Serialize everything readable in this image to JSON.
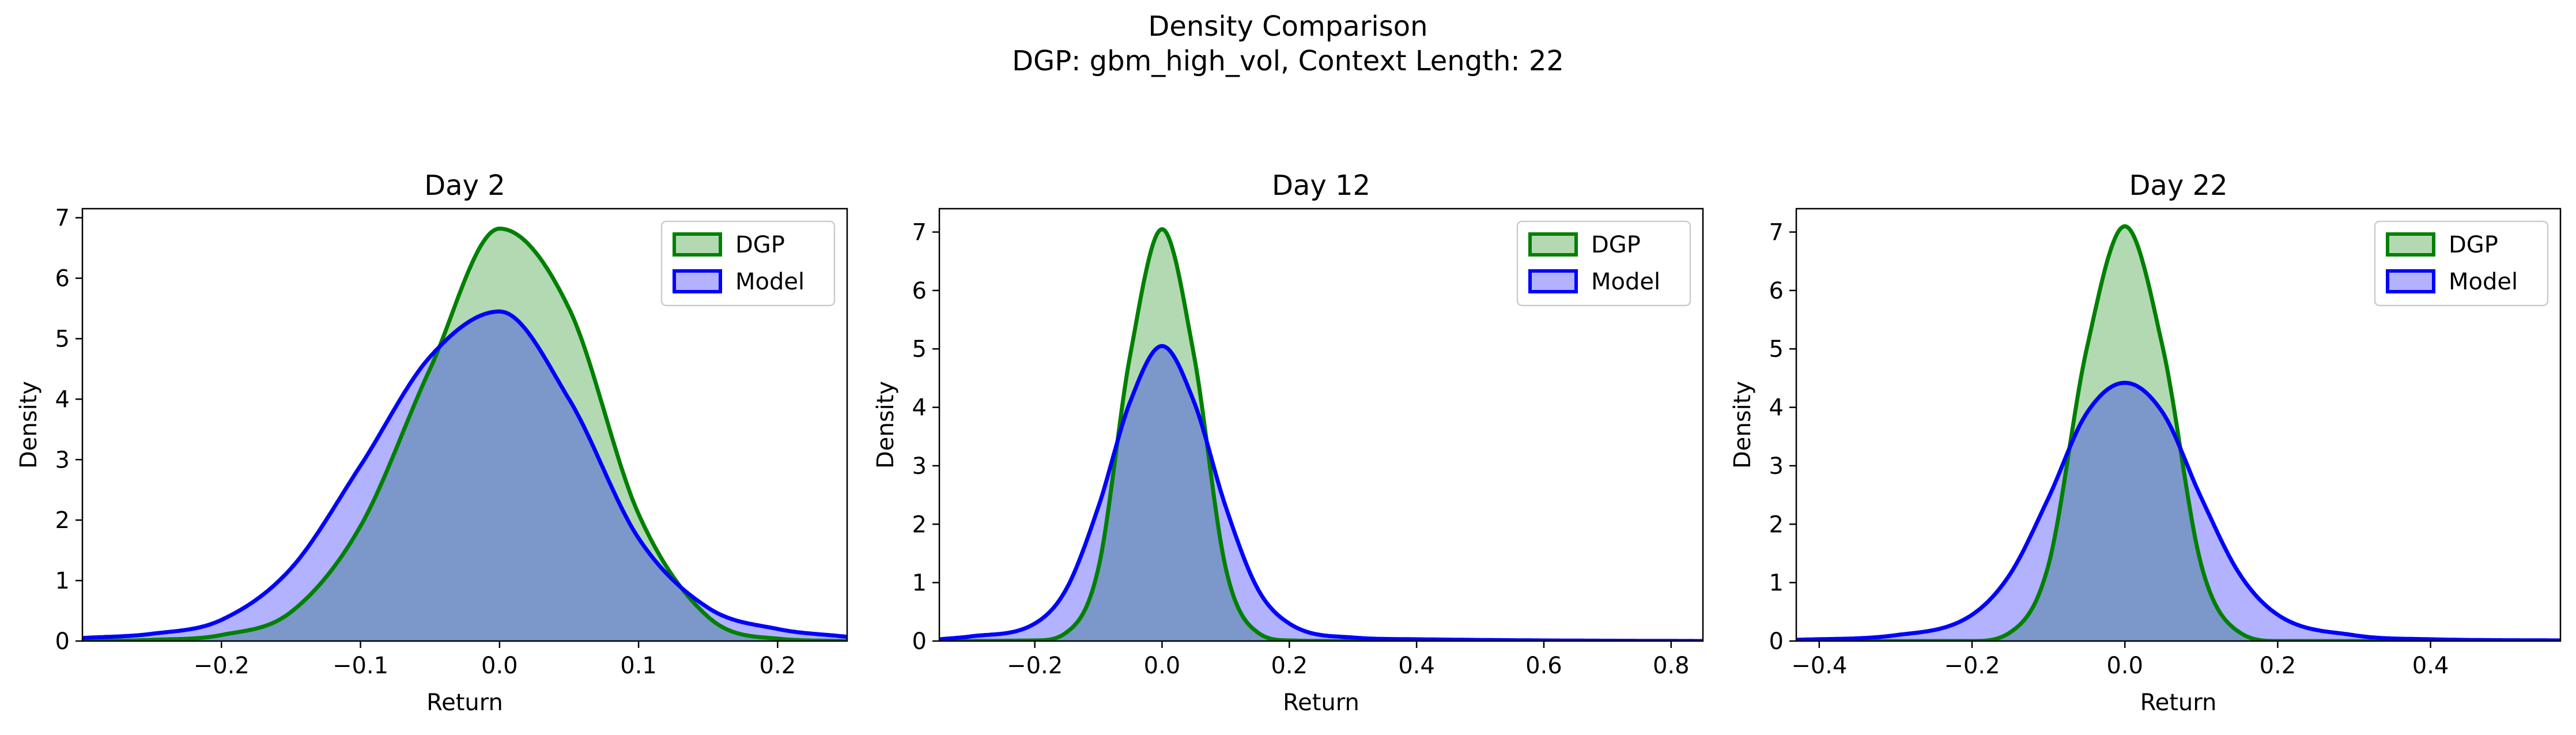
{
  "figure": {
    "title_line1": "Density Comparison",
    "title_line2": "DGP: gbm_high_vol, Context Length: 22"
  },
  "colors": {
    "dgp_line": "#008000",
    "dgp_fill": "#008000",
    "model_line": "#0000ff",
    "model_fill": "#0000ff"
  },
  "chart_data": [
    {
      "type": "area",
      "title": "Day 2",
      "xlabel": "Return",
      "ylabel": "Density",
      "xlim": [
        -0.3,
        0.25
      ],
      "ylim": [
        0,
        7.15
      ],
      "xticks": [
        -0.2,
        -0.1,
        0.0,
        0.1,
        0.2
      ],
      "xtick_labels": [
        "−0.2",
        "−0.1",
        "0.0",
        "0.1",
        "0.2"
      ],
      "yticks": [
        0,
        1,
        2,
        3,
        4,
        5,
        6,
        7
      ],
      "legend": "top-right",
      "series": [
        {
          "name": "DGP",
          "color": "#008000",
          "x": [
            -0.3,
            -0.25,
            -0.2,
            -0.15,
            -0.1,
            -0.05,
            0.0,
            0.05,
            0.1,
            0.15,
            0.2,
            0.25
          ],
          "y": [
            0.0,
            0.02,
            0.1,
            0.48,
            1.9,
            4.5,
            6.82,
            5.5,
            2.1,
            0.4,
            0.04,
            0.0
          ]
        },
        {
          "name": "Model",
          "color": "#0000ff",
          "x": [
            -0.3,
            -0.25,
            -0.2,
            -0.15,
            -0.1,
            -0.05,
            0.0,
            0.05,
            0.1,
            0.15,
            0.2,
            0.25
          ],
          "y": [
            0.05,
            0.12,
            0.35,
            1.2,
            2.9,
            4.7,
            5.45,
            4.0,
            1.7,
            0.55,
            0.2,
            0.07
          ]
        }
      ]
    },
    {
      "type": "area",
      "title": "Day 12",
      "xlabel": "Return",
      "ylabel": "Density",
      "xlim": [
        -0.35,
        0.85
      ],
      "ylim": [
        0,
        7.4
      ],
      "xticks": [
        -0.2,
        0.0,
        0.2,
        0.4,
        0.6,
        0.8
      ],
      "xtick_labels": [
        "−0.2",
        "0.0",
        "0.2",
        "0.4",
        "0.6",
        "0.8"
      ],
      "yticks": [
        0,
        1,
        2,
        3,
        4,
        5,
        6,
        7
      ],
      "legend": "top-right",
      "series": [
        {
          "name": "DGP",
          "color": "#008000",
          "x": [
            -0.35,
            -0.2,
            -0.15,
            -0.1,
            -0.05,
            0.0,
            0.05,
            0.1,
            0.15,
            0.2,
            0.3,
            0.85
          ],
          "y": [
            0.0,
            0.01,
            0.15,
            1.25,
            4.9,
            7.05,
            4.9,
            1.25,
            0.15,
            0.01,
            0.0,
            0.0
          ]
        },
        {
          "name": "Model",
          "color": "#0000ff",
          "x": [
            -0.35,
            -0.3,
            -0.2,
            -0.15,
            -0.1,
            -0.05,
            0.0,
            0.05,
            0.1,
            0.15,
            0.2,
            0.3,
            0.4,
            0.6,
            0.85
          ],
          "y": [
            0.03,
            0.08,
            0.3,
            0.9,
            2.3,
            4.1,
            5.05,
            4.1,
            2.3,
            0.9,
            0.3,
            0.06,
            0.03,
            0.01,
            0.0
          ]
        }
      ]
    },
    {
      "type": "area",
      "title": "Day 22",
      "xlabel": "Return",
      "ylabel": "Density",
      "xlim": [
        -0.43,
        0.57
      ],
      "ylim": [
        0,
        7.4
      ],
      "xticks": [
        -0.4,
        -0.2,
        0.0,
        0.2,
        0.4
      ],
      "xtick_labels": [
        "−0.4",
        "−0.2",
        "0.0",
        "0.2",
        "0.4"
      ],
      "yticks": [
        0,
        1,
        2,
        3,
        4,
        5,
        6,
        7
      ],
      "legend": "top-right",
      "series": [
        {
          "name": "DGP",
          "color": "#008000",
          "x": [
            -0.43,
            -0.2,
            -0.15,
            -0.1,
            -0.05,
            0.0,
            0.05,
            0.1,
            0.15,
            0.2,
            0.57
          ],
          "y": [
            0.0,
            0.0,
            0.15,
            1.3,
            5.0,
            7.1,
            5.0,
            1.3,
            0.15,
            0.0,
            0.0
          ]
        },
        {
          "name": "Model",
          "color": "#0000ff",
          "x": [
            -0.43,
            -0.3,
            -0.2,
            -0.15,
            -0.1,
            -0.05,
            0.0,
            0.05,
            0.1,
            0.15,
            0.2,
            0.3,
            0.4,
            0.57
          ],
          "y": [
            0.02,
            0.1,
            0.45,
            1.15,
            2.45,
            3.9,
            4.42,
            3.9,
            2.45,
            1.15,
            0.45,
            0.1,
            0.03,
            0.01
          ]
        }
      ]
    }
  ]
}
